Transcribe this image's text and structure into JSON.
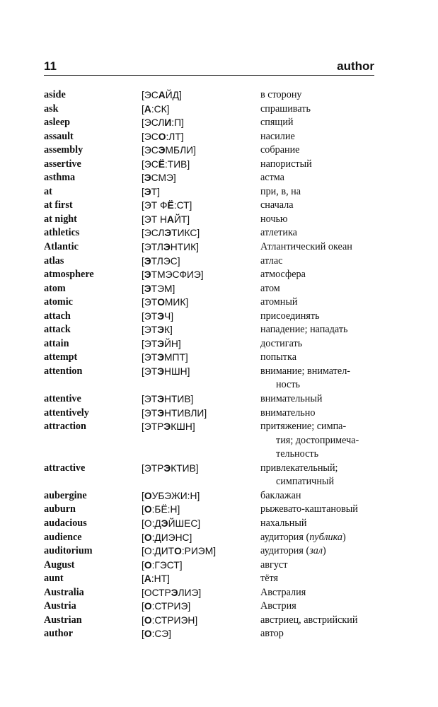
{
  "header": {
    "page_number": "11",
    "running_head": "author"
  },
  "entries": [
    {
      "word": "aside",
      "tx": [
        "[ЭС",
        "А",
        "ЙД]"
      ],
      "tr": [
        [
          "в сторону"
        ]
      ]
    },
    {
      "word": "ask",
      "tx": [
        "[",
        "А",
        ":СК]"
      ],
      "tr": [
        [
          "спрашивать"
        ]
      ]
    },
    {
      "word": "asleep",
      "tx": [
        "[ЭСЛ",
        "И",
        ":П]"
      ],
      "tr": [
        [
          "спящий"
        ]
      ]
    },
    {
      "word": "assault",
      "tx": [
        "[ЭС",
        "О",
        ":ЛТ]"
      ],
      "tr": [
        [
          "насилие"
        ]
      ]
    },
    {
      "word": "assembly",
      "tx": [
        "[ЭС",
        "Э",
        "МБЛИ]"
      ],
      "tr": [
        [
          "собрание"
        ]
      ]
    },
    {
      "word": "assertive",
      "tx": [
        "[ЭС",
        "Ё",
        ":ТИВ]"
      ],
      "tr": [
        [
          "напористый"
        ]
      ]
    },
    {
      "word": "asthma",
      "tx": [
        "[",
        "Э",
        "СМЭ]"
      ],
      "tr": [
        [
          "астма"
        ]
      ]
    },
    {
      "word": "at",
      "tx": [
        "[",
        "Э",
        "Т]"
      ],
      "tr": [
        [
          "при, в, на"
        ]
      ]
    },
    {
      "word": "at first",
      "tx": [
        "[ЭТ Ф",
        "Ё",
        ":СТ]"
      ],
      "tr": [
        [
          "сначала"
        ]
      ]
    },
    {
      "word": "at night",
      "tx": [
        "[ЭТ Н",
        "А",
        "ЙТ]"
      ],
      "tr": [
        [
          "ночью"
        ]
      ]
    },
    {
      "word": "athletics",
      "tx": [
        "[ЭСЛ",
        "Э",
        "ТИКС]"
      ],
      "tr": [
        [
          "атлетика"
        ]
      ]
    },
    {
      "word": "Atlantic",
      "tx": [
        "[ЭТЛ",
        "Э",
        "НТИК]"
      ],
      "tr": [
        [
          "Атлантический океан"
        ]
      ]
    },
    {
      "word": "atlas",
      "tx": [
        "[",
        "Э",
        "ТЛЭС]"
      ],
      "tr": [
        [
          "атлас"
        ]
      ]
    },
    {
      "word": "atmosphere",
      "tx": [
        "[",
        "Э",
        "ТМЭСФИЭ]"
      ],
      "tr": [
        [
          "атмосфера"
        ]
      ]
    },
    {
      "word": "atom",
      "tx": [
        "[",
        "Э",
        "ТЭМ]"
      ],
      "tr": [
        [
          "атом"
        ]
      ]
    },
    {
      "word": "atomic",
      "tx": [
        "[ЭТ",
        "О",
        "МИК]"
      ],
      "tr": [
        [
          "атомный"
        ]
      ]
    },
    {
      "word": "attach",
      "tx": [
        "[ЭТ",
        "Э",
        "Ч]"
      ],
      "tr": [
        [
          "присоединять"
        ]
      ]
    },
    {
      "word": "attack",
      "tx": [
        "[ЭТ",
        "Э",
        "К]"
      ],
      "tr": [
        [
          "нападение; нападать"
        ]
      ]
    },
    {
      "word": "attain",
      "tx": [
        "[ЭТ",
        "Э",
        "ЙН]"
      ],
      "tr": [
        [
          "достигать"
        ]
      ]
    },
    {
      "word": "attempt",
      "tx": [
        "[ЭТ",
        "Э",
        "МПТ]"
      ],
      "tr": [
        [
          "попытка"
        ]
      ]
    },
    {
      "word": "attention",
      "tx": [
        "[ЭТ",
        "Э",
        "НШН]"
      ],
      "tr": [
        [
          "внимание; внимател-"
        ],
        [
          "ность"
        ]
      ]
    },
    {
      "word": "attentive",
      "tx": [
        "[ЭТ",
        "Э",
        "НТИВ]"
      ],
      "tr": [
        [
          "внимательный"
        ]
      ]
    },
    {
      "word": "attentively",
      "tx": [
        "[ЭТ",
        "Э",
        "НТИВЛИ]"
      ],
      "tr": [
        [
          "внимательно"
        ]
      ]
    },
    {
      "word": "attraction",
      "tx": [
        "[ЭТР",
        "Э",
        "КШН]"
      ],
      "tr": [
        [
          "притяжение; симпа-"
        ],
        [
          "тия; достопримеча-"
        ],
        [
          "тельность"
        ]
      ]
    },
    {
      "word": "attractive",
      "tx": [
        "[ЭТР",
        "Э",
        "КТИВ]"
      ],
      "tr": [
        [
          "привлекательный;"
        ],
        [
          "симпатичный"
        ]
      ]
    },
    {
      "word": "aubergine",
      "tx": [
        "[",
        "О",
        "УБЭЖИ:Н]"
      ],
      "tr": [
        [
          "баклажан"
        ]
      ]
    },
    {
      "word": "auburn",
      "tx": [
        "[",
        "О",
        ":БЁ:Н]"
      ],
      "tr": [
        [
          "рыжевато-каштановый"
        ]
      ]
    },
    {
      "word": "audacious",
      "tx": [
        "[О:Д",
        "Э",
        "ЙШЕС]"
      ],
      "tr": [
        [
          "нахальный"
        ]
      ]
    },
    {
      "word": "audience",
      "tx": [
        "[",
        "О",
        ":ДИЭНС]"
      ],
      "tr": [
        [
          "аудитория (",
          "публика",
          ")"
        ]
      ]
    },
    {
      "word": "auditorium",
      "tx": [
        "[О:ДИТ",
        "О",
        ":РИЭМ]"
      ],
      "tr": [
        [
          "аудитория (",
          "зал",
          ")"
        ]
      ]
    },
    {
      "word": "August",
      "tx": [
        "[",
        "О",
        ":ГЭСТ]"
      ],
      "tr": [
        [
          "август"
        ]
      ]
    },
    {
      "word": "aunt",
      "tx": [
        "[",
        "А",
        ":НТ]"
      ],
      "tr": [
        [
          "тётя"
        ]
      ]
    },
    {
      "word": "Australia",
      "tx": [
        "[ОСТР",
        "Э",
        "ЛИЭ]"
      ],
      "tr": [
        [
          "Австралия"
        ]
      ]
    },
    {
      "word": "Austria",
      "tx": [
        "[",
        "О",
        ":СТРИЭ]"
      ],
      "tr": [
        [
          "Австрия"
        ]
      ]
    },
    {
      "word": "Austrian",
      "tx": [
        "[",
        "О",
        ":СТРИЭН]"
      ],
      "tr": [
        [
          "австриец, австрийский"
        ]
      ]
    },
    {
      "word": "author",
      "tx": [
        "[",
        "О",
        ":СЭ]"
      ],
      "tr": [
        [
          "автор"
        ]
      ]
    }
  ]
}
